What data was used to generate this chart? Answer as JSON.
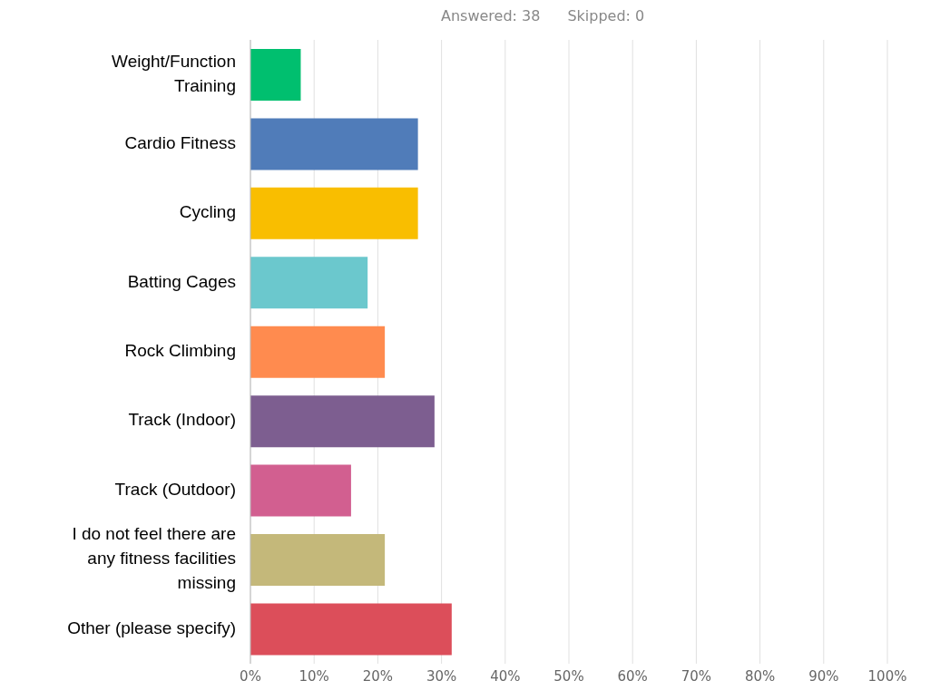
{
  "chart_data": {
    "type": "bar",
    "orientation": "horizontal",
    "categories": [
      "Weight/Function Training",
      "Cardio Fitness",
      "Cycling",
      "Batting Cages",
      "Rock Climbing",
      "Track (Indoor)",
      "Track (Outdoor)",
      "I do not feel there are any fitness facilities missing",
      "Other (please specify)"
    ],
    "values": [
      7.9,
      26.3,
      26.3,
      18.4,
      21.1,
      28.9,
      15.8,
      21.1,
      31.6
    ],
    "colors": [
      "#00bf6f",
      "#507cb9",
      "#f9be00",
      "#6bc8cd",
      "#ff8b4f",
      "#7d5e90",
      "#d25f90",
      "#c4b87a",
      "#dc4e5a"
    ],
    "xlim": [
      0,
      100
    ],
    "xticks": [
      {
        "value": 0,
        "label": "0%"
      },
      {
        "value": 10,
        "label": "10%"
      },
      {
        "value": 20,
        "label": "20%"
      },
      {
        "value": 30,
        "label": "30%"
      },
      {
        "value": 40,
        "label": "40%"
      },
      {
        "value": 50,
        "label": "50%"
      },
      {
        "value": 60,
        "label": "60%"
      },
      {
        "value": 70,
        "label": "70%"
      },
      {
        "value": 80,
        "label": "80%"
      },
      {
        "value": 90,
        "label": "90%"
      },
      {
        "value": 100,
        "label": "100%"
      }
    ],
    "grid": "x",
    "annotations": [
      "Answered: 38",
      "Skipped: 0"
    ]
  }
}
